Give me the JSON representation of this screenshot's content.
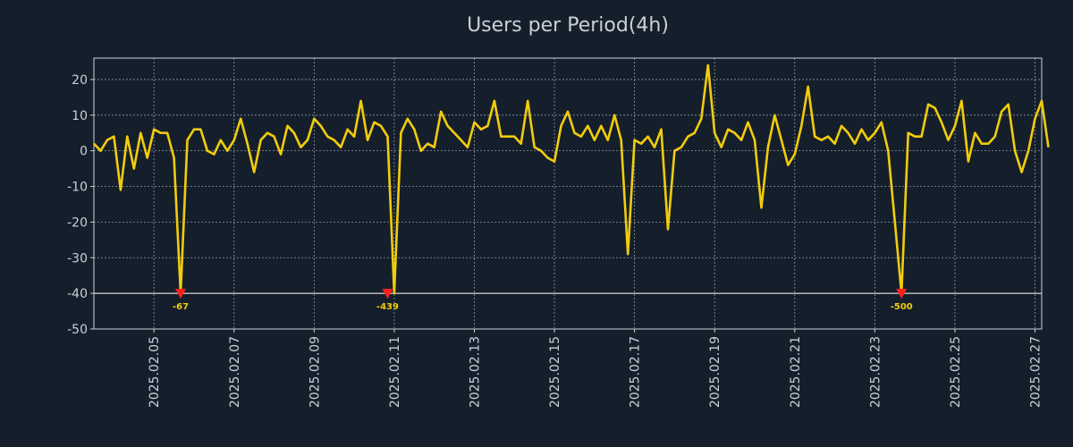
{
  "chart_data": {
    "type": "line",
    "title": "Users per Period(4h)",
    "xlabel": "",
    "ylabel": "",
    "ylim": [
      -50,
      26
    ],
    "y_ticks": [
      -50,
      -40,
      -30,
      -20,
      -10,
      0,
      10,
      20
    ],
    "x_range": [
      "2025-02-03 12:00",
      "2025-02-27 04:00"
    ],
    "x_ticks": [
      "2025.02.05",
      "2025.02.07",
      "2025.02.09",
      "2025.02.11",
      "2025.02.13",
      "2025.02.15",
      "2025.02.17",
      "2025.02.19",
      "2025.02.21",
      "2025.02.23",
      "2025.02.25",
      "2025.02.27"
    ],
    "grid": true,
    "clip_floor": -40,
    "series": [
      {
        "name": "Users",
        "start": "2025-02-03 12:00",
        "step_hours": 4,
        "values": [
          2,
          0,
          3,
          4,
          -11,
          4,
          -5,
          5,
          -2,
          6,
          5,
          5,
          -2,
          -40,
          3,
          6,
          6,
          0,
          -1,
          3,
          0,
          3,
          9,
          2,
          -6,
          3,
          5,
          4,
          -1,
          7,
          5,
          1,
          3,
          9,
          7,
          4,
          3,
          1,
          6,
          4,
          14,
          3,
          8,
          7,
          4,
          -40,
          5,
          9,
          6,
          0,
          2,
          1,
          11,
          7,
          5,
          3,
          1,
          8,
          6,
          7,
          14,
          4,
          4,
          4,
          2,
          14,
          1,
          0,
          -2,
          -3,
          7,
          11,
          5,
          4,
          7,
          3,
          7,
          3,
          10,
          3,
          -29,
          3,
          2,
          4,
          1,
          6,
          -22,
          0,
          1,
          4,
          5,
          9,
          24,
          5,
          1,
          6,
          5,
          3,
          8,
          3,
          -16,
          1,
          10,
          3,
          -4,
          -1,
          7,
          18,
          4,
          3,
          4,
          2,
          7,
          5,
          2,
          6,
          3,
          5,
          8,
          0,
          -20,
          -40,
          5,
          4,
          4,
          13,
          12,
          8,
          3,
          7,
          14,
          -3,
          5,
          2,
          2,
          4,
          11,
          13,
          0,
          -6,
          0,
          9,
          14,
          1
        ]
      }
    ],
    "markers": [
      {
        "label": "-67",
        "time": "2025-02-05 16:00",
        "value": -40,
        "color": "#ff1f1f"
      },
      {
        "label": "-439",
        "time": "2025-02-10 20:00",
        "value": -40,
        "color": "#ff1f1f"
      },
      {
        "label": "-500",
        "time": "2025-02-23 16:00",
        "value": -40,
        "color": "#ff1f1f"
      }
    ],
    "colors": {
      "background": "#151f2c",
      "line": "#f2cc0c",
      "grid": "#b8bec6",
      "axis": "#cbd0d6",
      "text": "#cbd0d6",
      "floor_line": "#ffffff"
    }
  }
}
